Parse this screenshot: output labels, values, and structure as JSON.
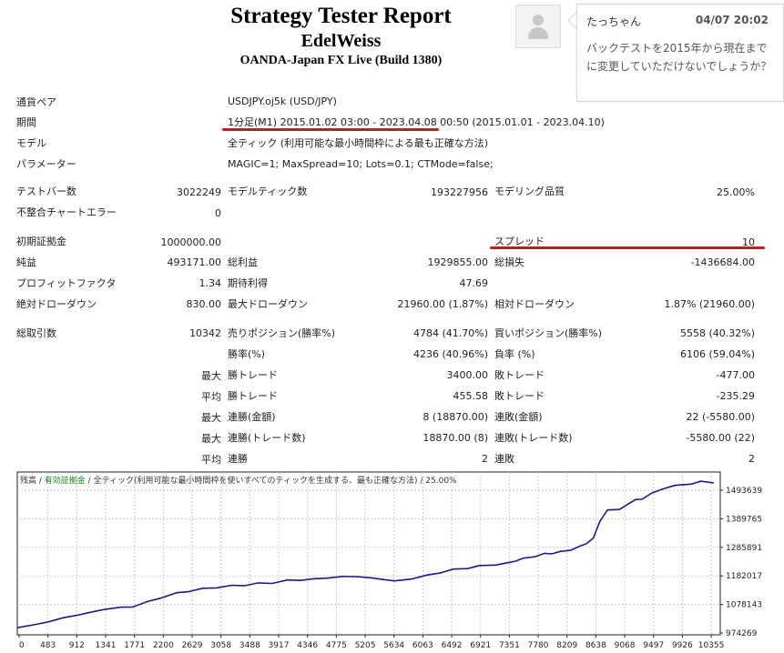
{
  "header": {
    "title": "Strategy Tester Report",
    "subtitle": "EdelWeiss",
    "server": "OANDA-Japan FX Live (Build 1380)"
  },
  "comment": {
    "user": "たっちゃん",
    "time": "04/07 20:02",
    "message": "バックテストを2015年から現在までに変更していただけないでしょうか？"
  },
  "info": {
    "symbol_label": "通貨ペア",
    "symbol_value": "USDJPY.oj5k (USD/JPY)",
    "period_label": "期間",
    "period_value": "1分足(M1) 2015.01.02 03:00 - 2023.04.08 00:50 (2015.01.01 - 2023.04.10)",
    "model_label": "モデル",
    "model_value": "全ティック (利用可能な最小時間枠による最も正確な方法)",
    "params_label": "パラメーター",
    "params_value": "MAGIC=1; MaxSpread=10; Lots=0.1; CTMode=false;"
  },
  "stats": {
    "bars_label": "テストバー数",
    "bars_value": "3022249",
    "ticks_label": "モデルティック数",
    "ticks_value": "193227956",
    "quality_label": "モデリング品質",
    "quality_value": "25.00%",
    "mismatch_label": "不整合チャートエラー",
    "mismatch_value": "0",
    "deposit_label": "初期証拠金",
    "deposit_value": "1000000.00",
    "spread_label": "スプレッド",
    "spread_value": "10",
    "net_label": "純益",
    "net_value": "493171.00",
    "gross_profit_label": "総利益",
    "gross_profit_value": "1929855.00",
    "gross_loss_label": "総損失",
    "gross_loss_value": "-1436684.00",
    "pf_label": "プロフィットファクタ",
    "pf_value": "1.34",
    "expected_label": "期待利得",
    "expected_value": "47.69",
    "abs_dd_label": "絶対ドローダウン",
    "abs_dd_value": "830.00",
    "max_dd_label": "最大ドローダウン",
    "max_dd_value": "21960.00 (1.87%)",
    "rel_dd_label": "相対ドローダウン",
    "rel_dd_value": "1.87% (21960.00)",
    "total_trades_label": "総取引数",
    "total_trades_value": "10342",
    "short_label": "売りポジション(勝率%)",
    "short_value": "4784 (41.70%)",
    "long_label": "買いポジション(勝率%)",
    "long_value": "5558 (40.32%)",
    "win_pct_label": "勝率(%)",
    "win_pct_value": "4236 (40.96%)",
    "loss_pct_label": "負率 (%)",
    "loss_pct_value": "6106 (59.04%)",
    "max1": "最大",
    "largest_win_label": "勝トレード",
    "largest_win_value": "3400.00",
    "largest_loss_label": "敗トレード",
    "largest_loss_value": "-477.00",
    "avg1": "平均",
    "avg_win_label": "勝トレード",
    "avg_win_value": "455.58",
    "avg_loss_label": "敗トレード",
    "avg_loss_value": "-235.29",
    "max2": "最大",
    "cons_wins_label": "連勝(金額)",
    "cons_wins_value": "8 (18870.00)",
    "cons_losses_label": "連敗(金額)",
    "cons_losses_value": "22 (-5580.00)",
    "max3": "最大",
    "cons_profit_label": "連勝(トレード数)",
    "cons_profit_value": "18870.00 (8)",
    "cons_loss_label": "連敗(トレード数)",
    "cons_loss_value": "-5580.00 (22)",
    "avg2": "平均",
    "avg_cons_wins_label": "連勝",
    "avg_cons_wins_value": "2",
    "avg_cons_losses_label": "連敗",
    "avg_cons_losses_value": "2"
  },
  "colors": {
    "accent_red": "#d8121c",
    "balance_line": "#1a1a8c",
    "equity_legend": "#108a10"
  },
  "chart_legend": {
    "balance": "残高",
    "equity": "有効証拠金",
    "rest": "全ティック(利用可能な最小時間枠を使いすべてのティックを生成する、最も正確な方法)",
    "quality": "25.00%"
  },
  "chart_data": {
    "type": "line",
    "x_ticks": [
      "0",
      "483",
      "912",
      "1341",
      "1771",
      "2200",
      "2629",
      "3058",
      "3488",
      "3917",
      "4346",
      "4775",
      "5205",
      "5634",
      "6063",
      "6492",
      "6921",
      "7351",
      "7780",
      "8209",
      "8638",
      "9068",
      "9497",
      "9926",
      "10355"
    ],
    "y_ticks": [
      "1493639",
      "1389765",
      "1285891",
      "1182017",
      "1078143",
      "974269"
    ],
    "ylim": [
      974269,
      1525000
    ],
    "xlim": [
      0,
      10800
    ],
    "series": [
      {
        "x": [
          0,
          300,
          483,
          700,
          912,
          1150,
          1341,
          1600,
          1771,
          2000,
          2200,
          2450,
          2629,
          2850,
          3058,
          3300,
          3488,
          3700,
          3917,
          4150,
          4346,
          4550,
          4775,
          5000,
          5205,
          5450,
          5634,
          5800,
          6063,
          6300,
          6492,
          6700,
          6921,
          7100,
          7351,
          7500,
          7650,
          7780,
          7950,
          8100,
          8209,
          8350,
          8500,
          8638,
          8750,
          8850,
          8950,
          9068,
          9250,
          9497,
          9600,
          9750,
          9926,
          10100,
          10355,
          10500,
          10700
        ],
        "y": [
          1000000,
          1008000,
          1020000,
          1030000,
          1042000,
          1050000,
          1062000,
          1066000,
          1070000,
          1085000,
          1100000,
          1115000,
          1122000,
          1130000,
          1135000,
          1140000,
          1142000,
          1148000,
          1150000,
          1158000,
          1160000,
          1162000,
          1168000,
          1170000,
          1173000,
          1165000,
          1163000,
          1155000,
          1165000,
          1175000,
          1185000,
          1195000,
          1200000,
          1207000,
          1212000,
          1215000,
          1225000,
          1232000,
          1240000,
          1248000,
          1250000,
          1255000,
          1262000,
          1272000,
          1285000,
          1300000,
          1360000,
          1395000,
          1400000,
          1430000,
          1435000,
          1452000,
          1470000,
          1478000,
          1486000,
          1492000,
          1490000
        ]
      }
    ]
  }
}
